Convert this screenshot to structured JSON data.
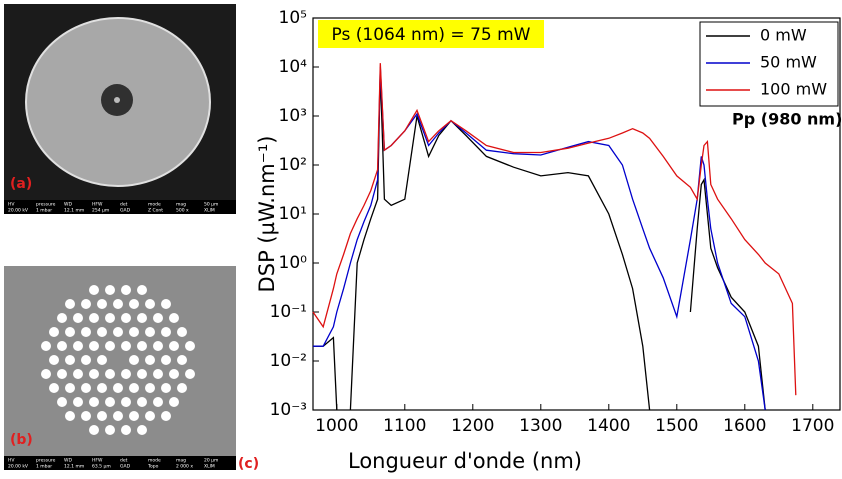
{
  "panels": {
    "a": {
      "label": "(a)",
      "info_head": [
        "HV",
        "pressure",
        "WD",
        "HFW",
        "det",
        "mode",
        "mag",
        "50 µm"
      ],
      "info_values": [
        "20.00 kV",
        "1 mbar",
        "12.1 mm",
        "254 µm",
        "GAD",
        "Z Cont",
        "500 x",
        "XLIM"
      ]
    },
    "b": {
      "label": "(b)",
      "info_head": [
        "HV",
        "pressure",
        "WD",
        "HFW",
        "det",
        "mode",
        "mag",
        "20 µm"
      ],
      "info_values": [
        "20.00 kV",
        "1 mbar",
        "12.1 mm",
        "63.5 µm",
        "GAD",
        "Topo",
        "2 000 x",
        "XLIM"
      ]
    },
    "c": {
      "label": "(c)"
    }
  },
  "chart_data": {
    "type": "line",
    "xlabel": "Longueur d'onde (nm)",
    "ylabel": "DSP (µW.nm⁻¹)",
    "annotation": "Ps (1064 nm) = 75 mW",
    "legend_title": "Pp (980 nm)",
    "legend": "upper right",
    "yscale": "log",
    "xlim": [
      965,
      1740
    ],
    "xticks": [
      1000,
      1100,
      1200,
      1300,
      1400,
      1500,
      1600,
      1700
    ],
    "ylim": [
      0.001,
      100000
    ],
    "yticks": [
      {
        "value": 0.001,
        "label": "10⁻³"
      },
      {
        "value": 0.01,
        "label": "10⁻²"
      },
      {
        "value": 0.1,
        "label": "10⁻¹"
      },
      {
        "value": 1,
        "label": "10⁰"
      },
      {
        "value": 10,
        "label": "10¹"
      },
      {
        "value": 100,
        "label": "10²"
      },
      {
        "value": 1000,
        "label": "10³"
      },
      {
        "value": 10000,
        "label": "10⁴"
      },
      {
        "value": 100000,
        "label": "10⁵"
      }
    ],
    "x": [
      965,
      980,
      995,
      1000,
      1010,
      1020,
      1030,
      1040,
      1050,
      1060,
      1064,
      1070,
      1080,
      1100,
      1118,
      1135,
      1150,
      1168,
      1190,
      1220,
      1260,
      1300,
      1340,
      1370,
      1400,
      1420,
      1435,
      1450,
      1460,
      1480,
      1500,
      1520,
      1530,
      1536,
      1540,
      1545,
      1550,
      1560,
      1580,
      1600,
      1620,
      1630,
      1650,
      1670,
      1675,
      1700,
      1740
    ],
    "series": [
      {
        "name": "0 mW",
        "color": "#000000",
        "values": [
          0.02,
          0.02,
          0.03,
          0.001,
          null,
          0.001,
          1,
          3,
          8,
          20,
          8000,
          20,
          15,
          20,
          1000,
          150,
          400,
          800,
          400,
          150,
          90,
          60,
          70,
          60,
          10,
          1.5,
          0.3,
          0.02,
          0.001,
          null,
          null,
          0.1,
          5,
          40,
          50,
          10,
          2,
          0.8,
          0.2,
          0.1,
          0.02,
          0.001,
          null,
          null,
          null,
          null,
          null
        ]
      },
      {
        "name": "50 mW",
        "color": "#0000cc",
        "values": [
          0.02,
          0.02,
          0.05,
          0.1,
          0.3,
          1,
          3,
          7,
          15,
          50,
          10000,
          200,
          250,
          500,
          1100,
          250,
          450,
          800,
          450,
          200,
          170,
          160,
          230,
          300,
          250,
          100,
          20,
          5,
          2,
          0.5,
          0.08,
          3,
          20,
          150,
          100,
          20,
          5,
          1,
          0.15,
          0.08,
          0.01,
          0.001,
          null,
          null,
          null,
          null,
          null
        ]
      },
      {
        "name": "100 mW",
        "color": "#dd1111",
        "values": [
          0.1,
          0.05,
          0.3,
          0.6,
          1.5,
          4,
          8,
          15,
          30,
          80,
          12000,
          200,
          250,
          500,
          1300,
          300,
          500,
          800,
          500,
          250,
          180,
          180,
          220,
          280,
          350,
          450,
          550,
          450,
          350,
          150,
          60,
          35,
          20,
          100,
          250,
          300,
          40,
          20,
          8,
          3,
          1.5,
          1,
          0.6,
          0.15,
          0.002,
          null,
          null
        ]
      }
    ]
  }
}
